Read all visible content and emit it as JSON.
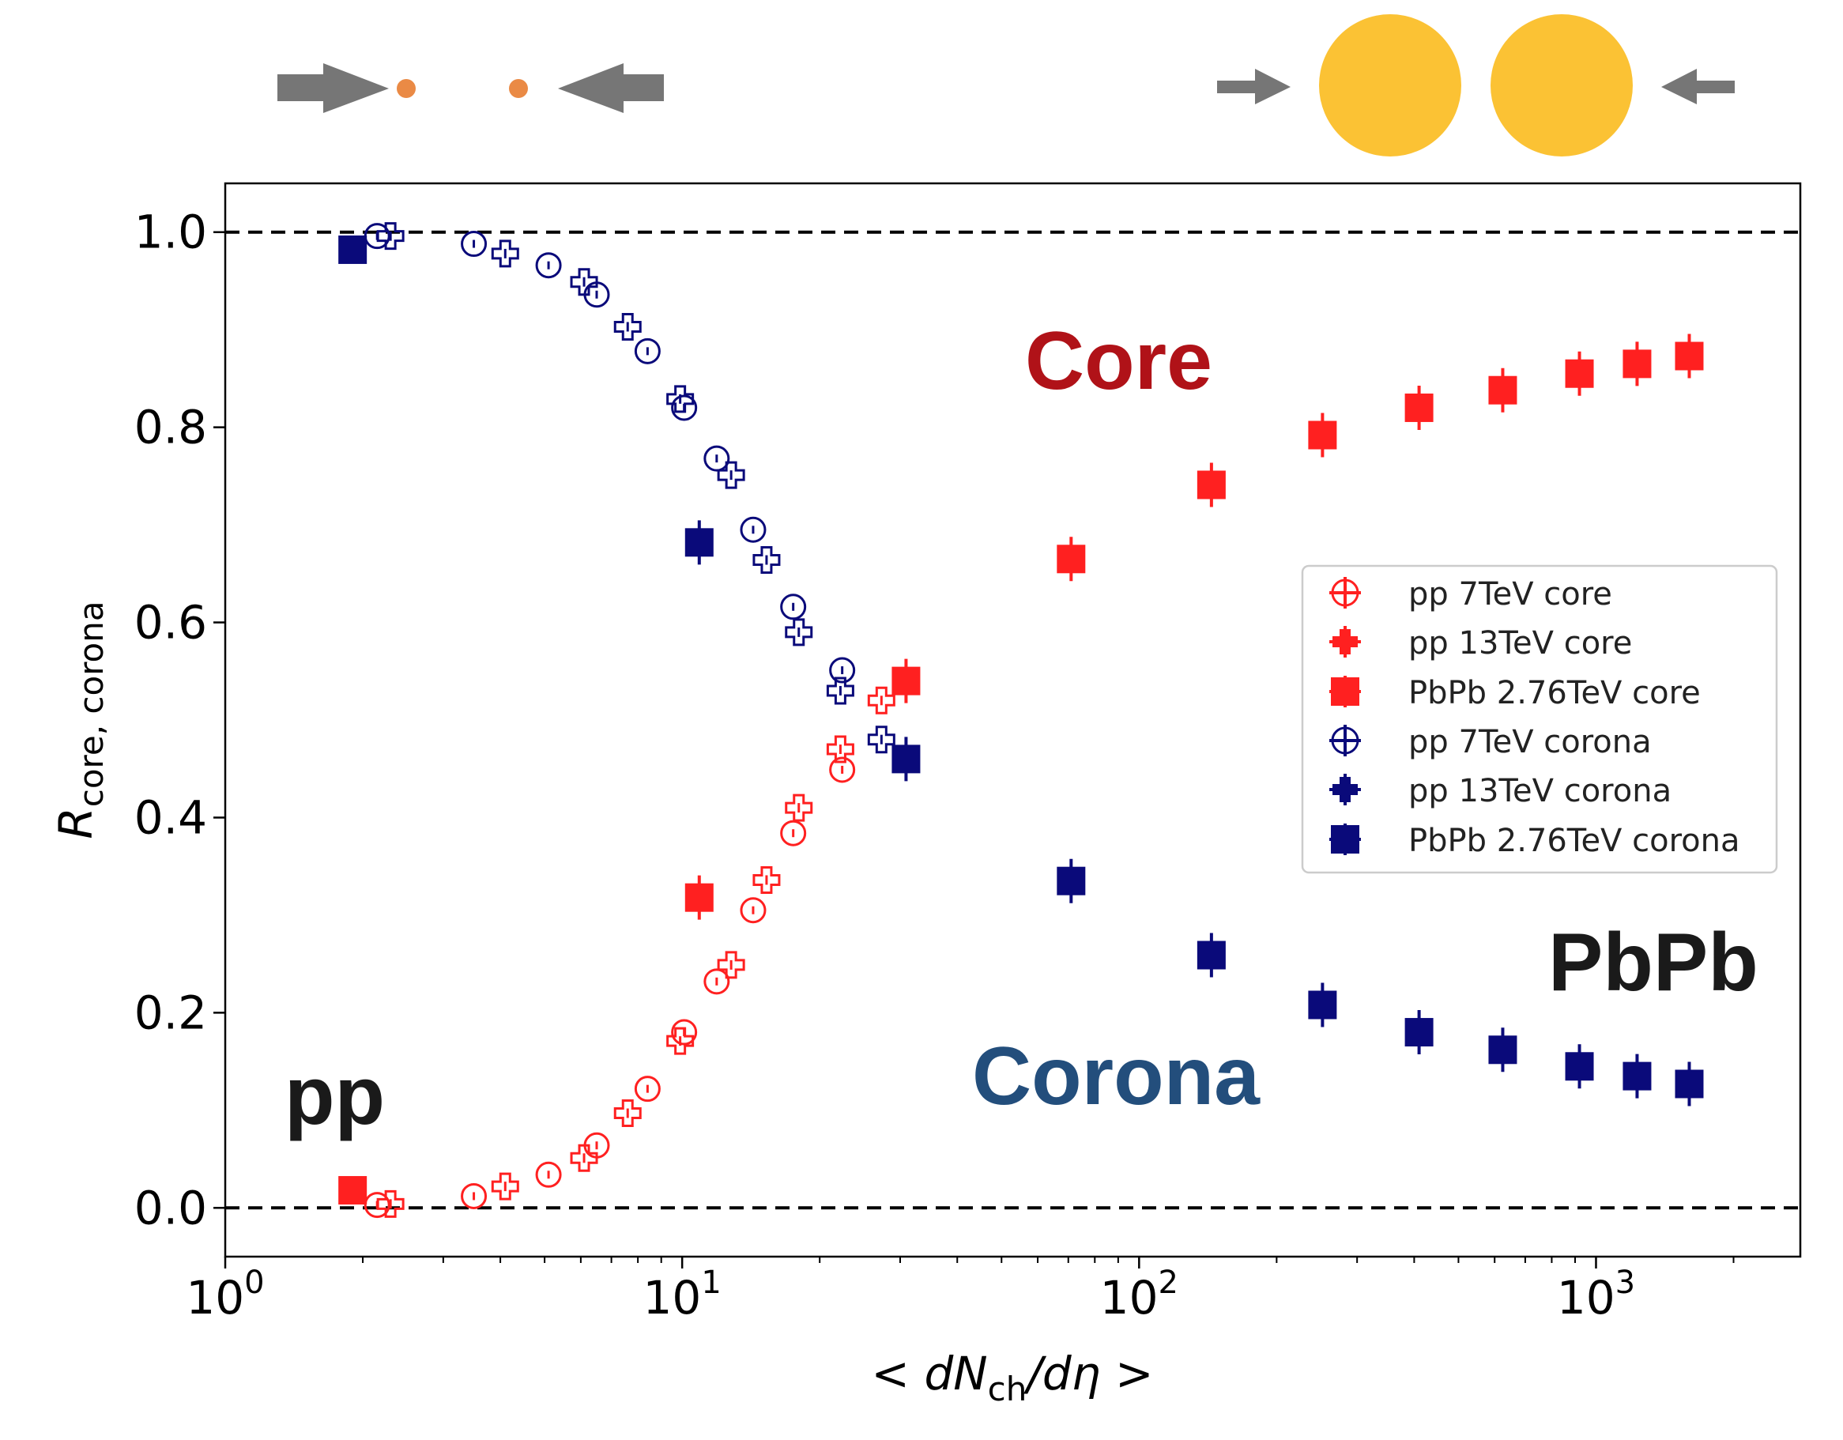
{
  "chart_data": {
    "type": "scatter",
    "x_scale": "log",
    "xlabel": "< dN_ch/dη >",
    "xlabel_parts": {
      "pre": "< ",
      "d1": "dN",
      "sub": "ch",
      "d2": "/d",
      "eta": "η",
      "post": " >"
    },
    "ylabel": "R_core, corona",
    "ylabel_parts": {
      "main": "R",
      "sub": "core, corona"
    },
    "xlim": [
      1,
      2800
    ],
    "ylim": [
      -0.05,
      1.05
    ],
    "x_ticks": [
      {
        "value": 1,
        "base": "10",
        "exp": "0"
      },
      {
        "value": 10,
        "base": "10",
        "exp": "1"
      },
      {
        "value": 100,
        "base": "10",
        "exp": "2"
      },
      {
        "value": 1000,
        "base": "10",
        "exp": "3"
      }
    ],
    "y_ticks": [
      "0.0",
      "0.2",
      "0.4",
      "0.6",
      "0.8",
      "1.0"
    ],
    "reference_lines": [
      0.0,
      1.0
    ],
    "legend_position": "center-right",
    "series": [
      {
        "name": "pp 7TeV core",
        "color": "#ff2020",
        "marker": "circle-plus-open",
        "points": [
          [
            2.15,
            0.003
          ],
          [
            3.5,
            0.012
          ],
          [
            5.1,
            0.034
          ],
          [
            6.5,
            0.064
          ],
          [
            8.4,
            0.122
          ],
          [
            10.1,
            0.18
          ],
          [
            11.9,
            0.232
          ],
          [
            14.3,
            0.305
          ],
          [
            17.5,
            0.384
          ],
          [
            22.4,
            0.449
          ]
        ]
      },
      {
        "name": "pp 13TeV core",
        "color": "#ff2020",
        "marker": "plus-open",
        "points": [
          [
            2.3,
            0.004
          ],
          [
            4.1,
            0.022
          ],
          [
            6.1,
            0.051
          ],
          [
            7.6,
            0.097
          ],
          [
            9.9,
            0.171
          ],
          [
            12.8,
            0.249
          ],
          [
            15.3,
            0.336
          ],
          [
            18.0,
            0.41
          ],
          [
            22.2,
            0.47
          ],
          [
            27.3,
            0.52
          ]
        ]
      },
      {
        "name": "PbPb 2.76TeV core",
        "color": "#ff2020",
        "marker": "square-filled",
        "points": [
          [
            1.9,
            0.018
          ],
          [
            10.9,
            0.318
          ],
          [
            30.9,
            0.54
          ],
          [
            71,
            0.665
          ],
          [
            144,
            0.741
          ],
          [
            252,
            0.792
          ],
          [
            410,
            0.82
          ],
          [
            625,
            0.838
          ],
          [
            920,
            0.855
          ],
          [
            1230,
            0.865
          ],
          [
            1600,
            0.873
          ]
        ]
      },
      {
        "name": "pp 7TeV corona",
        "color": "#0a0a7a",
        "marker": "circle-plus-open",
        "points": [
          [
            2.15,
            0.996
          ],
          [
            3.5,
            0.988
          ],
          [
            5.1,
            0.966
          ],
          [
            6.5,
            0.936
          ],
          [
            8.4,
            0.878
          ],
          [
            10.1,
            0.82
          ],
          [
            11.9,
            0.768
          ],
          [
            14.3,
            0.695
          ],
          [
            17.5,
            0.616
          ],
          [
            22.4,
            0.551
          ]
        ]
      },
      {
        "name": "pp 13TeV corona",
        "color": "#0a0a7a",
        "marker": "plus-open",
        "points": [
          [
            2.3,
            0.996
          ],
          [
            4.1,
            0.978
          ],
          [
            6.1,
            0.949
          ],
          [
            7.6,
            0.903
          ],
          [
            9.9,
            0.829
          ],
          [
            12.8,
            0.751
          ],
          [
            15.3,
            0.664
          ],
          [
            18.0,
            0.59
          ],
          [
            22.2,
            0.53
          ],
          [
            27.3,
            0.48
          ]
        ]
      },
      {
        "name": "PbPb 2.76TeV corona",
        "color": "#0a0a7a",
        "marker": "square-filled",
        "points": [
          [
            1.9,
            0.982
          ],
          [
            10.9,
            0.682
          ],
          [
            30.9,
            0.46
          ],
          [
            71,
            0.335
          ],
          [
            144,
            0.259
          ],
          [
            252,
            0.208
          ],
          [
            410,
            0.18
          ],
          [
            625,
            0.162
          ],
          [
            920,
            0.145
          ],
          [
            1230,
            0.135
          ],
          [
            1600,
            0.127
          ]
        ]
      }
    ],
    "annotations": [
      {
        "text": "Core",
        "color": "#b01218"
      },
      {
        "text": "Corona",
        "color": "#234e7c"
      },
      {
        "text": "pp",
        "color": "#1a1a1a"
      },
      {
        "text": "PbPb",
        "color": "#1a1a1a"
      }
    ]
  },
  "colors": {
    "arrow": "#767676",
    "proton": "#ea8a45",
    "nucleus": "#fbc234"
  }
}
